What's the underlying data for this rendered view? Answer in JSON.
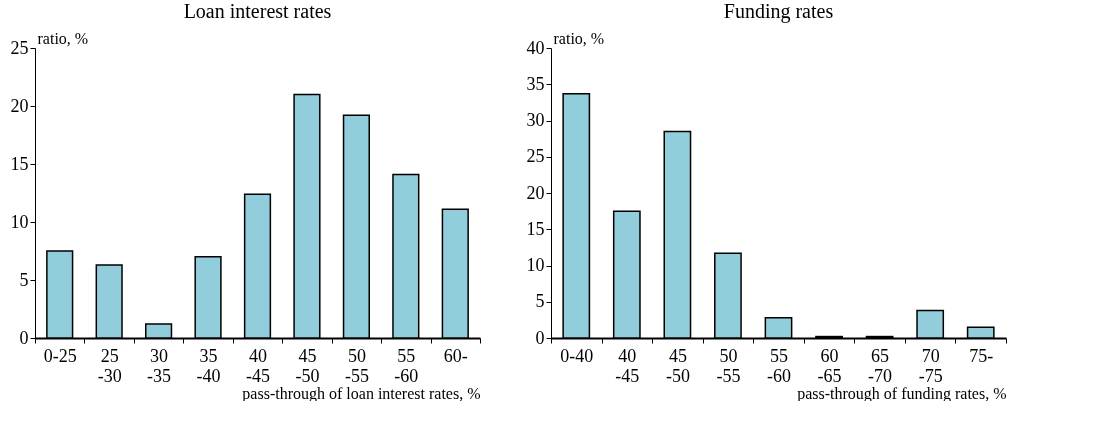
{
  "chart_data": [
    {
      "type": "bar",
      "title": "Loan interest rates",
      "xlabel": "pass-through of loan interest rates, %",
      "ylabel": "ratio, %",
      "categories": [
        "0-25",
        "25\n-30",
        "30\n-35",
        "35\n-40",
        "40\n-45",
        "45\n-50",
        "50\n-55",
        "55\n-60",
        "60-"
      ],
      "values": [
        7.5,
        6.3,
        1.2,
        7.0,
        12.4,
        21.0,
        19.2,
        14.1,
        11.1
      ],
      "color": "#92cddc",
      "ylim": [
        0,
        25
      ],
      "yticks": [
        0,
        5,
        10,
        15,
        20,
        25
      ],
      "grid": false
    },
    {
      "type": "bar",
      "title": "Funding rates",
      "xlabel": "pass-through of funding rates, %",
      "ylabel": "ratio, %",
      "categories": [
        "0-40",
        "40\n-45",
        "45\n-50",
        "50\n-55",
        "55\n-60",
        "60\n-65",
        "65\n-70",
        "70\n-75",
        "75-"
      ],
      "values": [
        33.7,
        17.5,
        28.5,
        11.7,
        2.8,
        0.2,
        0.2,
        3.8,
        1.5
      ],
      "color": "#92cddc",
      "ylim": [
        0,
        40
      ],
      "yticks": [
        0,
        5,
        10,
        15,
        20,
        25,
        30,
        35,
        40
      ],
      "grid": false
    }
  ]
}
